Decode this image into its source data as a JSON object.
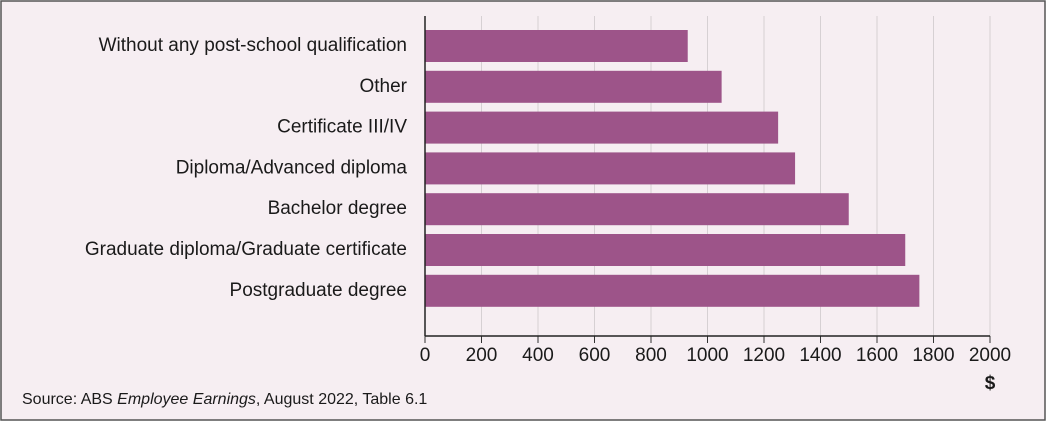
{
  "chart_data": {
    "type": "bar",
    "orientation": "horizontal",
    "categories": [
      "Without any post-school qualification",
      "Other",
      "Certificate III/IV",
      "Diploma/Advanced diploma",
      "Bachelor degree",
      "Graduate diploma/Graduate certificate",
      "Postgraduate degree"
    ],
    "values": [
      930,
      1050,
      1250,
      1310,
      1500,
      1700,
      1750
    ],
    "color": "#9d5489",
    "xlim": [
      0,
      2000
    ],
    "xticks": [
      0,
      200,
      400,
      600,
      800,
      1000,
      1200,
      1400,
      1600,
      1800,
      2000
    ],
    "x_label": "$",
    "grid": true,
    "source": {
      "prefix": "Source: ABS ",
      "italic": "Employee Earnings",
      "suffix": ", August 2022, Table 6.1"
    }
  }
}
